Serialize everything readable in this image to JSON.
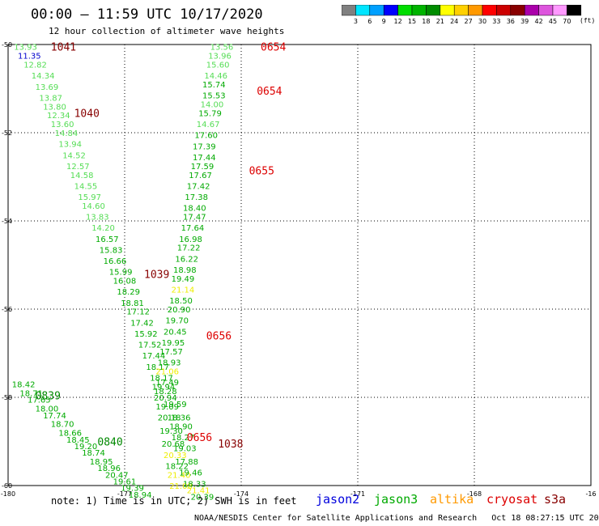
{
  "header": {
    "title": "00:00 — 11:59 UTC 10/17/2020",
    "subtitle": "12 hour collection of altimeter wave heights"
  },
  "colorbar": {
    "units": "(ft)",
    "bins": [
      {
        "color": "#808080",
        "label": "3"
      },
      {
        "color": "#00e5ff",
        "label": "6"
      },
      {
        "color": "#00a0ff",
        "label": "9"
      },
      {
        "color": "#0000ff",
        "label": "12"
      },
      {
        "color": "#00dd00",
        "label": "15"
      },
      {
        "color": "#00b400",
        "label": "18"
      },
      {
        "color": "#008c00",
        "label": "21"
      },
      {
        "color": "#ffff00",
        "label": "24"
      },
      {
        "color": "#ffd000",
        "label": "27"
      },
      {
        "color": "#ff9900",
        "label": "30"
      },
      {
        "color": "#ff0000",
        "label": "33"
      },
      {
        "color": "#cc0000",
        "label": "36"
      },
      {
        "color": "#880000",
        "label": "39"
      },
      {
        "color": "#aa00aa",
        "label": "42"
      },
      {
        "color": "#dd55dd",
        "label": "45"
      },
      {
        "color": "#ff99ff",
        "label": "70"
      },
      {
        "color": "#000000",
        "label": ""
      }
    ]
  },
  "footer": {
    "note": "note: 1) Time is in UTC; 2) SWH is in feet",
    "credit": "NOAA/NESDIS Center for Satellite Applications and Research   Oct 18 08:27:15 UTC 2020",
    "satellites": [
      {
        "name": "jason2",
        "color": "#0000dd"
      },
      {
        "name": "jason3",
        "color": "#00aa00"
      },
      {
        "name": "altika",
        "color": "#ff9900"
      },
      {
        "name": "cryosat",
        "color": "#dd0000"
      },
      {
        "name": "s3a",
        "color": "#880000"
      }
    ]
  },
  "chart_data": {
    "type": "scatter",
    "title": "00:00 — 11:59 UTC 10/17/2020",
    "subtitle": "12 hour collection of altimeter wave heights",
    "xlabel": "",
    "ylabel": "",
    "xlim": [
      -180,
      -165
    ],
    "ylim": [
      -60,
      -50
    ],
    "x_ticks": [
      "-180",
      "-177",
      "-174",
      "-171",
      "-168",
      "-16"
    ],
    "y_ticks": [
      "-50",
      "-52",
      "-54",
      "-56",
      "-58",
      "-60"
    ],
    "grid": true,
    "colors": {
      "lt": "#55dd55",
      "md": "#00aa00",
      "dk": "#008800",
      "yl": "#eeee00",
      "bl": "#0000cc",
      "rd": "#dd0000",
      "mr": "#880000"
    },
    "time_labels": [
      {
        "text": "1041",
        "lon": -178.9,
        "lat": -50.05,
        "c": "mr"
      },
      {
        "text": "1040",
        "lon": -178.3,
        "lat": -51.55,
        "c": "mr"
      },
      {
        "text": "1039",
        "lon": -176.5,
        "lat": -55.2,
        "c": "mr"
      },
      {
        "text": "0654",
        "lon": -173.5,
        "lat": -50.05,
        "c": "rd"
      },
      {
        "text": "0654",
        "lon": -173.6,
        "lat": -51.05,
        "c": "rd"
      },
      {
        "text": "0655",
        "lon": -173.8,
        "lat": -52.85,
        "c": "rd"
      },
      {
        "text": "0656",
        "lon": -174.9,
        "lat": -56.6,
        "c": "rd"
      },
      {
        "text": "0656",
        "lon": -175.4,
        "lat": -58.9,
        "c": "rd"
      },
      {
        "text": "1038",
        "lon": -174.6,
        "lat": -59.05,
        "c": "mr"
      },
      {
        "text": "0839",
        "lon": -179.3,
        "lat": -57.95,
        "c": "dk"
      },
      {
        "text": "0840",
        "lon": -177.7,
        "lat": -59.0,
        "c": "dk"
      }
    ],
    "tracks": [
      {
        "name": "",
        "points": [
          {
            "lon": -179.85,
            "lat": -50.05,
            "v": "13.93",
            "c": "lt"
          },
          {
            "lon": -179.75,
            "lat": -50.25,
            "v": "11.35",
            "c": "bl"
          },
          {
            "lon": -179.6,
            "lat": -50.45,
            "v": "12.82",
            "c": "lt"
          },
          {
            "lon": -179.4,
            "lat": -50.7,
            "v": "14.34",
            "c": "lt"
          },
          {
            "lon": -179.3,
            "lat": -50.95,
            "v": "13.69",
            "c": "lt"
          },
          {
            "lon": -179.2,
            "lat": -51.2,
            "v": "13.87",
            "c": "lt"
          },
          {
            "lon": -179.1,
            "lat": -51.4,
            "v": "13.80",
            "c": "lt"
          },
          {
            "lon": -179.0,
            "lat": -51.6,
            "v": "12.34",
            "c": "lt"
          },
          {
            "lon": -178.9,
            "lat": -51.8,
            "v": "13.60",
            "c": "lt"
          },
          {
            "lon": -178.8,
            "lat": -52.0,
            "v": "14.84",
            "c": "lt"
          },
          {
            "lon": -178.7,
            "lat": -52.25,
            "v": "13.94",
            "c": "lt"
          },
          {
            "lon": -178.6,
            "lat": -52.5,
            "v": "14.52",
            "c": "lt"
          },
          {
            "lon": -178.5,
            "lat": -52.75,
            "v": "12.57",
            "c": "lt"
          },
          {
            "lon": -178.4,
            "lat": -52.95,
            "v": "14.58",
            "c": "lt"
          },
          {
            "lon": -178.3,
            "lat": -53.2,
            "v": "14.55",
            "c": "lt"
          },
          {
            "lon": -178.2,
            "lat": -53.45,
            "v": "15.97",
            "c": "lt"
          },
          {
            "lon": -178.1,
            "lat": -53.65,
            "v": "14.60",
            "c": "lt"
          },
          {
            "lon": -178.0,
            "lat": -53.9,
            "v": "13.83",
            "c": "lt"
          },
          {
            "lon": -177.85,
            "lat": -54.15,
            "v": "14.20",
            "c": "lt"
          },
          {
            "lon": -177.75,
            "lat": -54.4,
            "v": "16.57",
            "c": "md"
          },
          {
            "lon": -177.65,
            "lat": -54.65,
            "v": "15.83",
            "c": "md"
          },
          {
            "lon": -177.55,
            "lat": -54.9,
            "v": "16.66",
            "c": "md"
          },
          {
            "lon": -177.4,
            "lat": -55.15,
            "v": "15.99",
            "c": "md"
          },
          {
            "lon": -177.3,
            "lat": -55.35,
            "v": "16.08",
            "c": "md"
          },
          {
            "lon": -177.2,
            "lat": -55.6,
            "v": "18.29",
            "c": "md"
          },
          {
            "lon": -177.1,
            "lat": -55.85,
            "v": "18.81",
            "c": "md"
          },
          {
            "lon": -176.95,
            "lat": -56.05,
            "v": "17.12",
            "c": "md"
          },
          {
            "lon": -176.85,
            "lat": -56.3,
            "v": "17.42",
            "c": "md"
          },
          {
            "lon": -176.75,
            "lat": -56.55,
            "v": "15.92",
            "c": "md"
          },
          {
            "lon": -176.65,
            "lat": -56.8,
            "v": "17.52",
            "c": "md"
          },
          {
            "lon": -176.55,
            "lat": -57.05,
            "v": "17.44",
            "c": "md"
          },
          {
            "lon": -176.45,
            "lat": -57.3,
            "v": "18.17",
            "c": "md"
          },
          {
            "lon": -176.35,
            "lat": -57.55,
            "v": "18.17",
            "c": "md"
          },
          {
            "lon": -176.3,
            "lat": -57.75,
            "v": "19.94",
            "c": "md"
          },
          {
            "lon": -176.25,
            "lat": -58.0,
            "v": "20.94",
            "c": "md"
          },
          {
            "lon": -176.2,
            "lat": -58.2,
            "v": "19.09",
            "c": "md"
          },
          {
            "lon": -176.15,
            "lat": -58.45,
            "v": "20.18",
            "c": "md"
          },
          {
            "lon": -176.1,
            "lat": -58.75,
            "v": "19.30",
            "c": "md"
          },
          {
            "lon": -176.05,
            "lat": -59.05,
            "v": "20.68",
            "c": "md"
          },
          {
            "lon": -176.0,
            "lat": -59.3,
            "v": "20.33",
            "c": "yl"
          },
          {
            "lon": -175.95,
            "lat": -59.55,
            "v": "18.22",
            "c": "md"
          },
          {
            "lon": -175.9,
            "lat": -59.75,
            "v": "21.40",
            "c": "yl"
          },
          {
            "lon": -175.85,
            "lat": -60.0,
            "v": "21.08",
            "c": "yl"
          }
        ]
      },
      {
        "name": "",
        "points": [
          {
            "lon": -174.8,
            "lat": -50.05,
            "v": "13.56",
            "c": "lt"
          },
          {
            "lon": -174.85,
            "lat": -50.25,
            "v": "13.96",
            "c": "lt"
          },
          {
            "lon": -174.9,
            "lat": -50.45,
            "v": "15.60",
            "c": "lt"
          },
          {
            "lon": -174.95,
            "lat": -50.7,
            "v": "14.46",
            "c": "lt"
          },
          {
            "lon": -175.0,
            "lat": -50.9,
            "v": "15.74",
            "c": "md"
          },
          {
            "lon": -175.0,
            "lat": -51.15,
            "v": "15.53",
            "c": "md"
          },
          {
            "lon": -175.05,
            "lat": -51.35,
            "v": "14.00",
            "c": "lt"
          },
          {
            "lon": -175.1,
            "lat": -51.55,
            "v": "15.79",
            "c": "md"
          },
          {
            "lon": -175.15,
            "lat": -51.8,
            "v": "14.67",
            "c": "lt"
          },
          {
            "lon": -175.2,
            "lat": -52.05,
            "v": "17.60",
            "c": "md"
          },
          {
            "lon": -175.25,
            "lat": -52.3,
            "v": "17.39",
            "c": "md"
          },
          {
            "lon": -175.25,
            "lat": -52.55,
            "v": "17.44",
            "c": "md"
          },
          {
            "lon": -175.3,
            "lat": -52.75,
            "v": "17.59",
            "c": "md"
          },
          {
            "lon": -175.35,
            "lat": -52.95,
            "v": "17.67",
            "c": "md"
          },
          {
            "lon": -175.4,
            "lat": -53.2,
            "v": "17.42",
            "c": "md"
          },
          {
            "lon": -175.45,
            "lat": -53.45,
            "v": "17.38",
            "c": "md"
          },
          {
            "lon": -175.5,
            "lat": -53.7,
            "v": "18.40",
            "c": "md"
          },
          {
            "lon": -175.5,
            "lat": -53.9,
            "v": "17.47",
            "c": "md"
          },
          {
            "lon": -175.55,
            "lat": -54.15,
            "v": "17.64",
            "c": "md"
          },
          {
            "lon": -175.6,
            "lat": -54.4,
            "v": "16.98",
            "c": "md"
          },
          {
            "lon": -175.65,
            "lat": -54.6,
            "v": "17.22",
            "c": "md"
          },
          {
            "lon": -175.7,
            "lat": -54.85,
            "v": "16.22",
            "c": "md"
          },
          {
            "lon": -175.75,
            "lat": -55.1,
            "v": "18.98",
            "c": "md"
          },
          {
            "lon": -175.8,
            "lat": -55.3,
            "v": "19.49",
            "c": "md"
          },
          {
            "lon": -175.8,
            "lat": -55.55,
            "v": "21.14",
            "c": "yl"
          },
          {
            "lon": -175.85,
            "lat": -55.8,
            "v": "18.50",
            "c": "md"
          },
          {
            "lon": -175.9,
            "lat": -56.0,
            "v": "20.90",
            "c": "md"
          },
          {
            "lon": -175.95,
            "lat": -56.25,
            "v": "19.70",
            "c": "md"
          },
          {
            "lon": -176.0,
            "lat": -56.5,
            "v": "20.45",
            "c": "md"
          },
          {
            "lon": -176.05,
            "lat": -56.75,
            "v": "19.95",
            "c": "md"
          },
          {
            "lon": -176.1,
            "lat": -56.95,
            "v": "17.57",
            "c": "md"
          },
          {
            "lon": -176.15,
            "lat": -57.2,
            "v": "18.93",
            "c": "md"
          },
          {
            "lon": -176.2,
            "lat": -57.4,
            "v": "21.06",
            "c": "yl"
          },
          {
            "lon": -176.2,
            "lat": -57.65,
            "v": "17.49",
            "c": "md"
          },
          {
            "lon": -176.25,
            "lat": -57.85,
            "v": "18.28",
            "c": "md"
          },
          {
            "lon": -176.0,
            "lat": -58.15,
            "v": "19.59",
            "c": "md"
          },
          {
            "lon": -175.9,
            "lat": -58.45,
            "v": "18.36",
            "c": "md"
          },
          {
            "lon": -175.85,
            "lat": -58.65,
            "v": "18.90",
            "c": "md"
          },
          {
            "lon": -175.8,
            "lat": -58.9,
            "v": "18.27",
            "c": "md"
          },
          {
            "lon": -175.75,
            "lat": -59.15,
            "v": "19.03",
            "c": "md"
          },
          {
            "lon": -175.7,
            "lat": -59.45,
            "v": "17.88",
            "c": "md"
          },
          {
            "lon": -175.6,
            "lat": -59.7,
            "v": "19.46",
            "c": "md"
          },
          {
            "lon": -175.5,
            "lat": -59.95,
            "v": "18.33",
            "c": "md"
          },
          {
            "lon": -175.4,
            "lat": -60.1,
            "v": "21.41",
            "c": "yl"
          },
          {
            "lon": -175.3,
            "lat": -60.25,
            "v": "20.39",
            "c": "md"
          }
        ]
      },
      {
        "name": "",
        "points": [
          {
            "lon": -179.9,
            "lat": -57.7,
            "v": "18.42",
            "c": "md"
          },
          {
            "lon": -179.7,
            "lat": -57.9,
            "v": "18.71",
            "c": "md"
          },
          {
            "lon": -179.5,
            "lat": -58.05,
            "v": "17.65",
            "c": "md"
          },
          {
            "lon": -179.3,
            "lat": -58.25,
            "v": "18.00",
            "c": "md"
          },
          {
            "lon": -179.1,
            "lat": -58.4,
            "v": "17.74",
            "c": "md"
          },
          {
            "lon": -178.9,
            "lat": -58.6,
            "v": "18.70",
            "c": "md"
          },
          {
            "lon": -178.7,
            "lat": -58.8,
            "v": "18.66",
            "c": "md"
          },
          {
            "lon": -178.5,
            "lat": -58.95,
            "v": "18.45",
            "c": "md"
          },
          {
            "lon": -178.3,
            "lat": -59.1,
            "v": "19.20",
            "c": "md"
          },
          {
            "lon": -178.1,
            "lat": -59.25,
            "v": "18.74",
            "c": "md"
          },
          {
            "lon": -177.9,
            "lat": -59.45,
            "v": "18.95",
            "c": "md"
          },
          {
            "lon": -177.7,
            "lat": -59.6,
            "v": "18.96",
            "c": "md"
          },
          {
            "lon": -177.5,
            "lat": -59.75,
            "v": "20.47",
            "c": "md"
          },
          {
            "lon": -177.3,
            "lat": -59.9,
            "v": "19.61",
            "c": "md"
          },
          {
            "lon": -177.1,
            "lat": -60.05,
            "v": "19.39",
            "c": "md"
          },
          {
            "lon": -176.9,
            "lat": -60.2,
            "v": "18.94",
            "c": "md"
          }
        ]
      }
    ]
  }
}
